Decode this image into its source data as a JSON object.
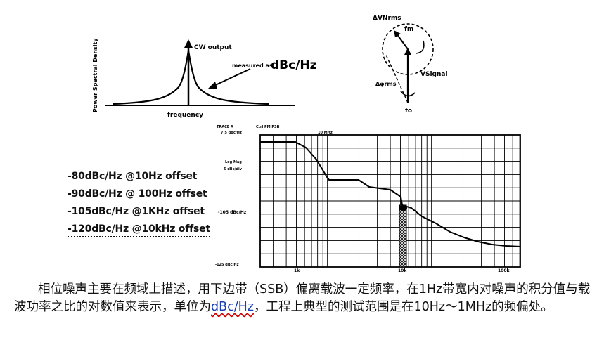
{
  "psd_diagram": {
    "ylabel": "Power Spectral Density",
    "xlabel": "frequency",
    "peak_label": "CW output",
    "measured_prefix": "measured as",
    "measured_unit": "dBc/Hz"
  },
  "phasor_diagram": {
    "label_top": "ΔVNrms",
    "label_fm": "fm",
    "label_signal": "VSignal",
    "label_phase": "Δφrms",
    "label_fo": "fo"
  },
  "spectrum_chart": {
    "header_ref": "7.5 dBc/Hz",
    "header_mid": "10 MHz",
    "header_left": "TRACE A",
    "header_right": "Ctrl PM PSB",
    "scale_label": "Log Mag",
    "scale_div": "5 dBc/div",
    "ref_level": "-105 dBc/Hz",
    "bottom_level": "-125 dBc/Hz",
    "x_ticks": [
      "1k",
      "10k",
      "100k"
    ]
  },
  "spec_list": [
    "-80dBc/Hz @10Hz offset",
    "-90dBc/Hz @ 100Hz offset",
    "-105dBc/Hz @1KHz offset",
    "-120dBc/Hz @10kHz offset"
  ],
  "paragraph": {
    "before": "相位噪声主要在频域上描述，用下边带（SSB）偏离载波一定频率，在1Hz带宽内对噪声的积分值与载波功率之比的对数值来表示，单位为",
    "unit": "dBc/Hz",
    "after": "，工程上典型的测试范围是在10Hz～1MHz的频偏处。"
  }
}
